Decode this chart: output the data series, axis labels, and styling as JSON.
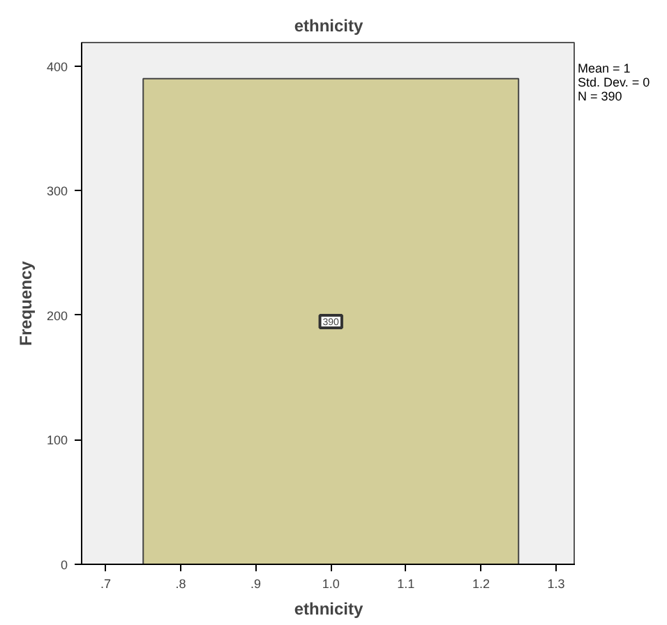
{
  "chart_data": {
    "type": "histogram",
    "title": "ethnicity",
    "xlabel": "ethnicity",
    "ylabel": "Frequency",
    "bins": [
      0.75,
      1.25
    ],
    "values": [
      390
    ],
    "color": "#d3ce99",
    "data_labels": true,
    "xlim": [
      0.668,
      1.326
    ],
    "ylim": [
      0,
      419
    ],
    "xticks": [
      {
        "value": 0.7,
        "label": ".7"
      },
      {
        "value": 0.8,
        "label": ".8"
      },
      {
        "value": 0.9,
        "label": ".9"
      },
      {
        "value": 1.0,
        "label": "1.0"
      },
      {
        "value": 1.1,
        "label": "1.1"
      },
      {
        "value": 1.2,
        "label": "1.2"
      },
      {
        "value": 1.3,
        "label": "1.3"
      }
    ],
    "yticks": [
      0,
      100,
      200,
      300,
      400
    ],
    "grid": false,
    "annotations": [
      "Mean = 1",
      "Std. Dev. = 0",
      "N = 390"
    ]
  }
}
